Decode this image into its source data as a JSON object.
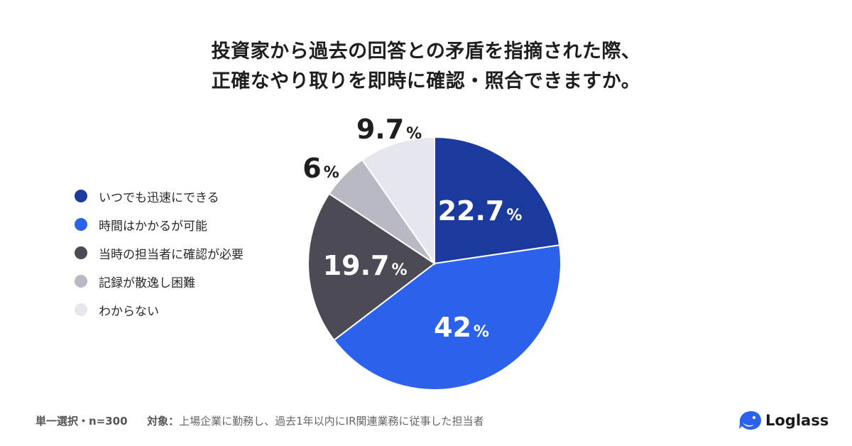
{
  "title": {
    "line1": "投資家から過去の回答との矛盾を指摘された際、",
    "line2": "正確なやり取りを即時に確認・照合できますか。"
  },
  "chart_data": {
    "type": "pie",
    "title": "投資家から過去の回答との矛盾を指摘された際、正確なやり取りを即時に確認・照合できますか。",
    "unit": "%",
    "legend_position": "left",
    "start_angle": "12 o'clock, clockwise",
    "slices": [
      {
        "label": "いつでも迅速にできる",
        "value": 22.7,
        "value_text": "22.7",
        "color": "#1a3a9e"
      },
      {
        "label": "時間はかかるが可能",
        "value": 42,
        "value_text": "42",
        "color": "#2c62eb"
      },
      {
        "label": "当時の担当者に確認が必要",
        "value": 19.7,
        "value_text": "19.7",
        "color": "#4b4a55"
      },
      {
        "label": "記録が散逸し困難",
        "value": 6,
        "value_text": "6",
        "color": "#b9b9c3"
      },
      {
        "label": "わからない",
        "value": 9.7,
        "value_text": "9.7",
        "color": "#e6e6ee"
      }
    ]
  },
  "footer": {
    "method": "単一選択・n=300",
    "target_label": "対象：",
    "target_text": "上場企業に勤務し、過去1年以内にIR関連業務に従事した担当者"
  },
  "logo": {
    "text": "Loglass",
    "color": "#2c62eb"
  }
}
